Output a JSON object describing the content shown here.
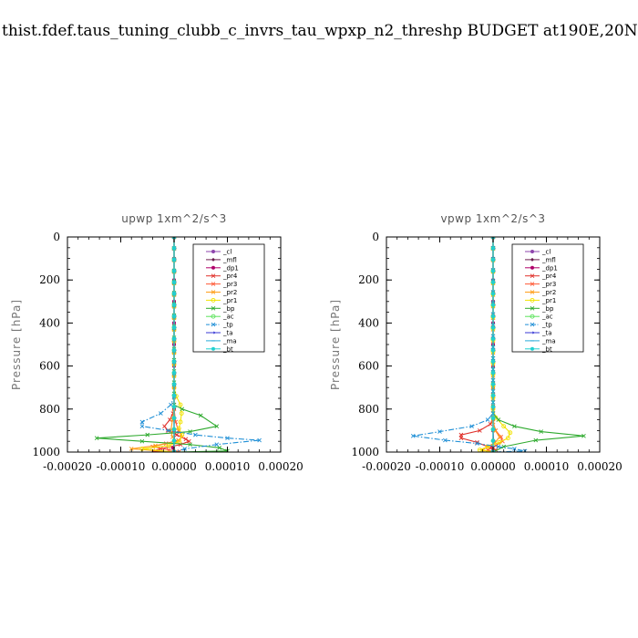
{
  "page_title": "thist.fdef.taus_tuning_clubb_c_invrs_tau_wpxp_n2_threshp  BUDGET at190E,20N",
  "chart_data": [
    {
      "type": "line",
      "title": "upwp   1xm^2/s^3",
      "ylabel": "Pressure [hPa]",
      "xlim": [
        -0.0002,
        0.0002
      ],
      "ylim": [
        1000,
        0
      ],
      "xticks": [
        -0.0002,
        -0.0001,
        0,
        0.0001,
        0.0002
      ],
      "xtick_labels": [
        "-0.00020",
        "-0.00010",
        "0.00000",
        "0.00010",
        "0.00020"
      ],
      "yticks": [
        0,
        200,
        400,
        600,
        800,
        1000
      ],
      "ytick_labels": [
        "0",
        "200",
        "400",
        "600",
        "800",
        "1000"
      ],
      "legend_position": "top-right",
      "series": [
        {
          "name": "_cl",
          "color": "#8e44ad",
          "marker": "dot",
          "dash": "solid",
          "x": [
            0,
            0,
            0,
            0,
            0,
            0,
            0,
            0,
            0,
            0,
            0
          ],
          "y": [
            0,
            100,
            200,
            300,
            400,
            500,
            600,
            700,
            800,
            900,
            1000
          ]
        },
        {
          "name": "_mfl",
          "color": "#6a1b4d",
          "marker": "diamond",
          "dash": "solid",
          "x": [
            0,
            0,
            0,
            0,
            0,
            0,
            0,
            0,
            0,
            0,
            0
          ],
          "y": [
            0,
            100,
            200,
            300,
            400,
            500,
            600,
            700,
            800,
            900,
            1000
          ]
        },
        {
          "name": "_dp1",
          "color": "#b0006a",
          "marker": "dot",
          "dash": "solid",
          "x": [
            0,
            0,
            0,
            0,
            0,
            0,
            0,
            0,
            0,
            0,
            0,
            1e-06,
            -2e-06,
            0
          ],
          "y": [
            0,
            100,
            200,
            300,
            400,
            500,
            600,
            700,
            800,
            850,
            900,
            950,
            980,
            1000
          ]
        },
        {
          "name": "_pr4",
          "color": "#e0302a",
          "marker": "cross",
          "dash": "solid",
          "x": [
            0,
            0,
            0,
            -2e-06,
            -8e-06,
            -1.8e-05,
            -1.2e-05,
            5e-06,
            2.2e-05,
            2.8e-05,
            1.2e-05,
            -2.5e-05,
            -4e-05,
            0
          ],
          "y": [
            0,
            700,
            780,
            820,
            850,
            880,
            900,
            920,
            940,
            950,
            965,
            985,
            995,
            1000
          ]
        },
        {
          "name": "_pr3",
          "color": "#ff5a36",
          "marker": "cross",
          "dash": "solid",
          "x": [
            0,
            0,
            3e-06,
            8e-06,
            1.5e-05,
            8e-06,
            -1.5e-05,
            -4e-05,
            -1e-05,
            1e-05,
            0
          ],
          "y": [
            0,
            800,
            860,
            900,
            930,
            945,
            960,
            975,
            990,
            997,
            1000
          ]
        },
        {
          "name": "_pr2",
          "color": "#ff9f1c",
          "marker": "cross",
          "dash": "solid",
          "x": [
            0,
            0,
            -3e-06,
            -6e-06,
            -3e-06,
            4e-06,
            -3.5e-05,
            -8e-05,
            0
          ],
          "y": [
            0,
            800,
            850,
            900,
            930,
            950,
            970,
            985,
            1000
          ]
        },
        {
          "name": "_pr1",
          "color": "#f2e300",
          "marker": "circle",
          "dash": "solid",
          "x": [
            0,
            0,
            4e-06,
            1.2e-05,
            1.4e-05,
            1.2e-05,
            9e-06,
            1.5e-05,
            1e-05,
            -1e-05,
            -6e-05,
            0
          ],
          "y": [
            0,
            700,
            740,
            780,
            820,
            860,
            890,
            920,
            950,
            970,
            985,
            1000
          ]
        },
        {
          "name": "_bp",
          "color": "#2eaa2e",
          "marker": "cross",
          "dash": "solid",
          "x": [
            0,
            0,
            1.5e-05,
            5e-05,
            8e-05,
            3e-05,
            -5e-05,
            -0.000145,
            -6e-05,
            3e-05,
            8.5e-05,
            0.0001,
            0
          ],
          "y": [
            0,
            780,
            800,
            830,
            880,
            905,
            920,
            935,
            950,
            965,
            980,
            995,
            1000
          ]
        },
        {
          "name": "_ac",
          "color": "#5be35b",
          "marker": "circle",
          "dash": "solid",
          "x": [
            0,
            0
          ],
          "y": [
            0,
            1000
          ]
        },
        {
          "name": "_tp",
          "color": "#1f8fd6",
          "marker": "cross",
          "dash": "dashdot",
          "x": [
            0,
            0,
            -6e-06,
            -2.5e-05,
            -6e-05,
            -6e-05,
            -1e-05,
            4e-05,
            0.0001,
            0.00016,
            8e-05,
            2e-05,
            0
          ],
          "y": [
            0,
            740,
            780,
            820,
            860,
            880,
            900,
            920,
            935,
            945,
            965,
            985,
            1000
          ]
        },
        {
          "name": "_ta",
          "color": "#3a3ad6",
          "marker": "arrow",
          "dash": "solid",
          "x": [
            0,
            0
          ],
          "y": [
            0,
            1000
          ]
        },
        {
          "name": "_ma",
          "color": "#27aad8",
          "marker": "line",
          "dash": "solid",
          "x": [
            0,
            0
          ],
          "y": [
            0,
            1000
          ]
        },
        {
          "name": "_bt",
          "color": "#20d0d0",
          "marker": "dot",
          "dash": "solid",
          "x": [
            0,
            0
          ],
          "y": [
            0,
            1000
          ]
        }
      ]
    },
    {
      "type": "line",
      "title": "vpwp   1xm^2/s^3",
      "ylabel": "Pressure [hPa]",
      "xlim": [
        -0.0002,
        0.0002
      ],
      "ylim": [
        1000,
        0
      ],
      "xticks": [
        -0.0002,
        -0.0001,
        0,
        0.0001,
        0.0002
      ],
      "xtick_labels": [
        "-0.00020",
        "-0.00010",
        "0.00000",
        "0.00010",
        "0.00020"
      ],
      "yticks": [
        0,
        200,
        400,
        600,
        800,
        1000
      ],
      "ytick_labels": [
        "0",
        "200",
        "400",
        "600",
        "800",
        "1000"
      ],
      "legend_position": "top-right",
      "series": [
        {
          "name": "_cl",
          "color": "#8e44ad",
          "marker": "dot",
          "dash": "solid",
          "x": [
            0,
            0,
            0,
            0,
            0,
            0,
            0,
            0,
            0,
            0,
            0
          ],
          "y": [
            0,
            100,
            200,
            300,
            400,
            500,
            600,
            700,
            800,
            900,
            1000
          ]
        },
        {
          "name": "_mfl",
          "color": "#6a1b4d",
          "marker": "diamond",
          "dash": "solid",
          "x": [
            0,
            0,
            0,
            0,
            0,
            0,
            0,
            0,
            0,
            0,
            0
          ],
          "y": [
            0,
            100,
            200,
            300,
            400,
            500,
            600,
            700,
            800,
            900,
            1000
          ]
        },
        {
          "name": "_dp1",
          "color": "#b0006a",
          "marker": "dot",
          "dash": "solid",
          "x": [
            0,
            0,
            0,
            0,
            0,
            0,
            0,
            0,
            0,
            0,
            0,
            1e-06,
            -2e-06,
            0
          ],
          "y": [
            0,
            100,
            200,
            300,
            400,
            500,
            600,
            700,
            800,
            850,
            900,
            950,
            980,
            1000
          ]
        },
        {
          "name": "_pr4",
          "color": "#e0302a",
          "marker": "cross",
          "dash": "solid",
          "x": [
            0,
            0,
            -5e-06,
            -2.5e-05,
            -6e-05,
            -6e-05,
            -3e-05,
            -1e-05,
            5e-06,
            0
          ],
          "y": [
            0,
            840,
            870,
            900,
            920,
            935,
            955,
            975,
            990,
            1000
          ]
        },
        {
          "name": "_pr3",
          "color": "#ff5a36",
          "marker": "cross",
          "dash": "solid",
          "x": [
            0,
            0,
            5e-06,
            1.5e-05,
            1.8e-05,
            5e-06,
            -1e-05,
            0
          ],
          "y": [
            0,
            860,
            900,
            930,
            950,
            970,
            990,
            1000
          ]
        },
        {
          "name": "_pr2",
          "color": "#ff9f1c",
          "marker": "cross",
          "dash": "solid",
          "x": [
            0,
            0,
            4e-06,
            1.2e-05,
            4e-06,
            -1e-05,
            -2e-05,
            0
          ],
          "y": [
            0,
            860,
            900,
            930,
            955,
            975,
            990,
            1000
          ]
        },
        {
          "name": "_pr1",
          "color": "#f2e300",
          "marker": "circle",
          "dash": "solid",
          "x": [
            0,
            0,
            5e-06,
            2e-05,
            3.2e-05,
            2.8e-05,
            1.2e-05,
            -1e-05,
            -2.5e-05,
            0
          ],
          "y": [
            0,
            800,
            840,
            880,
            910,
            935,
            955,
            975,
            990,
            1000
          ]
        },
        {
          "name": "_bp",
          "color": "#2eaa2e",
          "marker": "cross",
          "dash": "solid",
          "x": [
            0,
            0,
            1e-05,
            4e-05,
            9e-05,
            0.00017,
            8e-05,
            2e-05,
            0
          ],
          "y": [
            0,
            820,
            850,
            880,
            905,
            925,
            945,
            975,
            1000
          ]
        },
        {
          "name": "_ac",
          "color": "#5be35b",
          "marker": "circle",
          "dash": "solid",
          "x": [
            0,
            0
          ],
          "y": [
            0,
            1000
          ]
        },
        {
          "name": "_tp",
          "color": "#1f8fd6",
          "marker": "cross",
          "dash": "dashdot",
          "x": [
            0,
            0,
            -1e-05,
            -4e-05,
            -0.0001,
            -0.00015,
            -9e-05,
            -3e-05,
            1e-05,
            4e-05,
            6e-05,
            0
          ],
          "y": [
            0,
            820,
            850,
            880,
            905,
            925,
            945,
            960,
            975,
            985,
            995,
            1000
          ]
        },
        {
          "name": "_ta",
          "color": "#3a3ad6",
          "marker": "arrow",
          "dash": "solid",
          "x": [
            0,
            0
          ],
          "y": [
            0,
            1000
          ]
        },
        {
          "name": "_ma",
          "color": "#27aad8",
          "marker": "line",
          "dash": "solid",
          "x": [
            0,
            0
          ],
          "y": [
            0,
            1000
          ]
        },
        {
          "name": "_bt",
          "color": "#20d0d0",
          "marker": "dot",
          "dash": "solid",
          "x": [
            0,
            0
          ],
          "y": [
            0,
            1000
          ]
        }
      ]
    }
  ]
}
